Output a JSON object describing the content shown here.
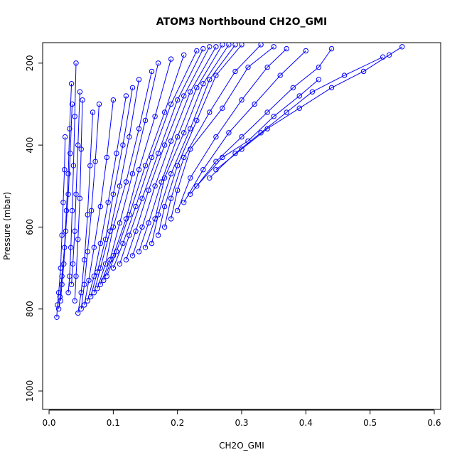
{
  "chart_data": {
    "type": "line",
    "title": "ATOM3 Northbound CH2O_GMI",
    "xlabel": "CH2O_GMI",
    "ylabel": "Pressure (mbar)",
    "xlim": [
      -0.01,
      0.61
    ],
    "ylim": [
      150,
      1045
    ],
    "y_reversed": true,
    "x_ticks": [
      0.0,
      0.1,
      0.2,
      0.3,
      0.4,
      0.5,
      0.6
    ],
    "x_tick_labels": [
      "0.0",
      "0.1",
      "0.2",
      "0.3",
      "0.4",
      "0.5",
      "0.6"
    ],
    "y_ticks": [
      200,
      400,
      600,
      800,
      1000
    ],
    "y_tick_labels": [
      "200",
      "400",
      "600",
      "800",
      "1000"
    ],
    "color": "#0000ff",
    "marker": "open-circle",
    "grid": false,
    "series": [
      {
        "x": [
          0.012,
          0.013,
          0.015,
          0.018,
          0.02,
          0.022,
          0.024,
          0.025
        ],
        "y": [
          820,
          790,
          760,
          700,
          620,
          540,
          460,
          380
        ]
      },
      {
        "x": [
          0.015,
          0.017,
          0.02,
          0.024,
          0.027,
          0.03,
          0.032,
          0.035
        ],
        "y": [
          800,
          770,
          720,
          650,
          560,
          470,
          360,
          250
        ]
      },
      {
        "x": [
          0.018,
          0.02,
          0.023,
          0.026,
          0.03,
          0.033,
          0.036
        ],
        "y": [
          780,
          740,
          690,
          610,
          520,
          420,
          300
        ]
      },
      {
        "x": [
          0.03,
          0.032,
          0.034,
          0.036,
          0.038,
          0.04,
          0.042
        ],
        "y": [
          760,
          720,
          650,
          560,
          450,
          330,
          200
        ]
      },
      {
        "x": [
          0.035,
          0.037,
          0.04,
          0.042,
          0.045,
          0.048
        ],
        "y": [
          740,
          690,
          610,
          520,
          400,
          270
        ]
      },
      {
        "x": [
          0.04,
          0.042,
          0.045,
          0.048,
          0.05,
          0.052
        ],
        "y": [
          780,
          720,
          630,
          530,
          410,
          290
        ]
      },
      {
        "x": [
          0.045,
          0.05,
          0.055,
          0.06,
          0.064,
          0.068
        ],
        "y": [
          810,
          760,
          680,
          570,
          450,
          320
        ]
      },
      {
        "x": [
          0.05,
          0.055,
          0.06,
          0.066,
          0.072,
          0.078
        ],
        "y": [
          800,
          740,
          660,
          560,
          440,
          300
        ]
      },
      {
        "x": [
          0.055,
          0.062,
          0.07,
          0.08,
          0.09,
          0.1
        ],
        "y": [
          790,
          730,
          650,
          550,
          430,
          290
        ]
      },
      {
        "x": [
          0.06,
          0.07,
          0.08,
          0.092,
          0.105,
          0.12
        ],
        "y": [
          780,
          720,
          640,
          540,
          420,
          280
        ]
      },
      {
        "x": [
          0.065,
          0.075,
          0.088,
          0.1,
          0.115,
          0.13
        ],
        "y": [
          770,
          710,
          630,
          520,
          400,
          260
        ]
      },
      {
        "x": [
          0.07,
          0.08,
          0.095,
          0.11,
          0.125,
          0.14
        ],
        "y": [
          760,
          700,
          610,
          500,
          380,
          240
        ]
      },
      {
        "x": [
          0.075,
          0.088,
          0.1,
          0.12,
          0.14,
          0.16
        ],
        "y": [
          750,
          690,
          600,
          490,
          360,
          220
        ]
      },
      {
        "x": [
          0.08,
          0.095,
          0.11,
          0.13,
          0.15,
          0.17
        ],
        "y": [
          740,
          680,
          590,
          470,
          340,
          200
        ]
      },
      {
        "x": [
          0.085,
          0.1,
          0.12,
          0.14,
          0.165,
          0.19
        ],
        "y": [
          730,
          670,
          580,
          460,
          330,
          190
        ]
      },
      {
        "x": [
          0.09,
          0.105,
          0.125,
          0.15,
          0.18,
          0.21
        ],
        "y": [
          720,
          660,
          570,
          450,
          320,
          180
        ]
      },
      {
        "x": [
          0.1,
          0.115,
          0.135,
          0.16,
          0.19,
          0.23
        ],
        "y": [
          700,
          640,
          550,
          430,
          300,
          170
        ]
      },
      {
        "x": [
          0.11,
          0.125,
          0.145,
          0.17,
          0.2,
          0.24
        ],
        "y": [
          690,
          620,
          530,
          420,
          290,
          165
        ]
      },
      {
        "x": [
          0.12,
          0.135,
          0.155,
          0.18,
          0.21,
          0.25
        ],
        "y": [
          680,
          610,
          510,
          400,
          280,
          160
        ]
      },
      {
        "x": [
          0.13,
          0.145,
          0.165,
          0.19,
          0.22,
          0.26
        ],
        "y": [
          670,
          600,
          500,
          390,
          270,
          160
        ]
      },
      {
        "x": [
          0.14,
          0.155,
          0.175,
          0.2,
          0.23,
          0.27
        ],
        "y": [
          660,
          590,
          490,
          380,
          260,
          155
        ]
      },
      {
        "x": [
          0.15,
          0.165,
          0.18,
          0.21,
          0.24,
          0.28
        ],
        "y": [
          650,
          580,
          480,
          370,
          250,
          155
        ]
      },
      {
        "x": [
          0.16,
          0.17,
          0.19,
          0.22,
          0.25,
          0.29
        ],
        "y": [
          640,
          570,
          470,
          360,
          240,
          155
        ]
      },
      {
        "x": [
          0.17,
          0.18,
          0.2,
          0.23,
          0.26,
          0.3
        ],
        "y": [
          620,
          550,
          450,
          340,
          230,
          155
        ]
      },
      {
        "x": [
          0.18,
          0.19,
          0.21,
          0.25,
          0.29,
          0.33
        ],
        "y": [
          600,
          530,
          430,
          320,
          220,
          155
        ]
      },
      {
        "x": [
          0.19,
          0.2,
          0.22,
          0.27,
          0.31,
          0.35
        ],
        "y": [
          580,
          510,
          410,
          310,
          210,
          160
        ]
      },
      {
        "x": [
          0.2,
          0.22,
          0.26,
          0.3,
          0.34,
          0.37
        ],
        "y": [
          560,
          480,
          380,
          290,
          210,
          165
        ]
      },
      {
        "x": [
          0.21,
          0.24,
          0.28,
          0.32,
          0.36,
          0.4
        ],
        "y": [
          540,
          460,
          370,
          300,
          230,
          170
        ]
      },
      {
        "x": [
          0.22,
          0.26,
          0.3,
          0.34,
          0.38,
          0.42,
          0.44
        ],
        "y": [
          520,
          440,
          380,
          320,
          260,
          210,
          165
        ]
      },
      {
        "x": [
          0.23,
          0.27,
          0.31,
          0.35,
          0.39,
          0.42
        ],
        "y": [
          500,
          430,
          390,
          330,
          280,
          240
        ]
      },
      {
        "x": [
          0.25,
          0.29,
          0.33,
          0.37,
          0.41,
          0.46,
          0.52
        ],
        "y": [
          480,
          420,
          370,
          320,
          270,
          230,
          185
        ]
      },
      {
        "x": [
          0.26,
          0.3,
          0.34,
          0.39,
          0.44,
          0.49,
          0.53,
          0.55
        ],
        "y": [
          460,
          410,
          360,
          310,
          260,
          220,
          180,
          160
        ]
      }
    ]
  }
}
